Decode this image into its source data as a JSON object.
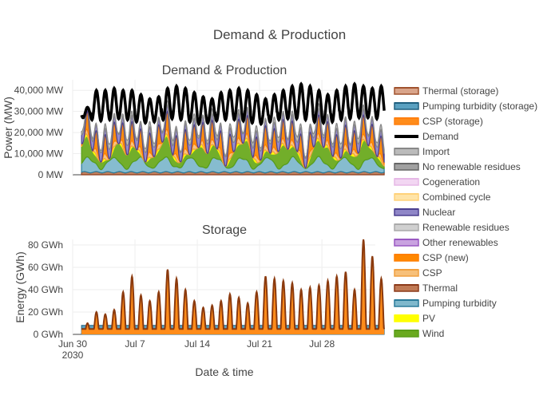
{
  "figure": {
    "title": "Demand & Production",
    "xlabel": "Date & time",
    "x_ticks": [
      {
        "date": "2030-06-30",
        "label": "Jun 30",
        "sublabel": "2030"
      },
      {
        "date": "2030-07-07",
        "label": "Jul 7",
        "sublabel": ""
      },
      {
        "date": "2030-07-14",
        "label": "Jul 14",
        "sublabel": ""
      },
      {
        "date": "2030-07-21",
        "label": "Jul 21",
        "sublabel": ""
      },
      {
        "date": "2030-07-28",
        "label": "Jul 28",
        "sublabel": ""
      }
    ],
    "x_range": [
      "2030-06-30",
      "2030-08-03"
    ]
  },
  "legend": [
    {
      "name": "Thermal (storage)",
      "color": "#a0522d",
      "fill": "#d9a48a"
    },
    {
      "name": "Pumping turbidity (storage)",
      "color": "#1f5f7f",
      "fill": "#5aa0c0"
    },
    {
      "name": "CSP (storage)",
      "color": "#ff7f0e",
      "fill": "#ff8c1a"
    },
    {
      "name": "Demand",
      "color": "#000000",
      "fill": "#000000"
    },
    {
      "name": "Import",
      "color": "#888888",
      "fill": "#bbbbbb"
    },
    {
      "name": "No renewable residues",
      "color": "#666666",
      "fill": "#a0a0a0"
    },
    {
      "name": "Cogeneration",
      "color": "#e6b8e6",
      "fill": "#f2d6f2"
    },
    {
      "name": "Combined cycle",
      "color": "#ffd27a",
      "fill": "#ffe4a8"
    },
    {
      "name": "Nuclear",
      "color": "#4b3f8f",
      "fill": "#8f86c7"
    },
    {
      "name": "Renewable residues",
      "color": "#aaaaaa",
      "fill": "#d0d0d0"
    },
    {
      "name": "Other renewables",
      "color": "#9a59c2",
      "fill": "#c9a3e0"
    },
    {
      "name": "CSP (new)",
      "color": "#ff7f00",
      "fill": "#ff8800"
    },
    {
      "name": "CSP",
      "color": "#f0a040",
      "fill": "#f7c07a"
    },
    {
      "name": "Thermal",
      "color": "#8b3a1a",
      "fill": "#c07a55"
    },
    {
      "name": "Pumping turbidity",
      "color": "#2a7a9a",
      "fill": "#7fb8cc"
    },
    {
      "name": "PV",
      "color": "#ffff00",
      "fill": "#ffff00"
    },
    {
      "name": "Wind",
      "color": "#5a9e1a",
      "fill": "#6aaa1f"
    }
  ],
  "chart_data": [
    {
      "type": "area",
      "title": "Demand & Production",
      "ylabel": "Power (MW)",
      "ylim": [
        0,
        45000
      ],
      "y_ticks": [
        {
          "value": 0,
          "label": "0 MW"
        },
        {
          "value": 10000,
          "label": "10,000 MW"
        },
        {
          "value": 20000,
          "label": "20,000 MW"
        },
        {
          "value": 30000,
          "label": "30,000 MW"
        },
        {
          "value": 40000,
          "label": "40,000 MW"
        }
      ],
      "x_start": "2030-07-01",
      "days": 34,
      "demand_series": {
        "name": "Demand",
        "min_mw": [
          27000,
          26000,
          25500,
          26000,
          26500,
          26000,
          25000,
          24500,
          25000,
          26000,
          26500,
          26000,
          25000,
          24000,
          24500,
          25500,
          26000,
          26000,
          25500,
          24500,
          24000,
          25000,
          26000,
          26500,
          26500,
          26000,
          25000,
          24500,
          25000,
          26000,
          26500,
          27000,
          27000,
          26500
        ],
        "max_mw": [
          32000,
          40000,
          40000,
          41000,
          40000,
          40000,
          38000,
          36000,
          37000,
          41000,
          42000,
          41000,
          39000,
          37000,
          36000,
          39000,
          40000,
          41000,
          40000,
          38000,
          36000,
          38000,
          40000,
          42000,
          43000,
          42000,
          40000,
          38000,
          40000,
          42000,
          43000,
          42000,
          41000,
          42000
        ]
      },
      "note_series": [
        "Wind",
        "Pumping turbidity",
        "Thermal",
        "PV",
        "CSP",
        "CSP (new)",
        "Nuclear",
        "Import"
      ]
    },
    {
      "type": "area",
      "title": "Storage",
      "ylabel": "Energy (GWh)",
      "ylim": [
        0,
        85
      ],
      "y_ticks": [
        {
          "value": 0,
          "label": "0 GWh"
        },
        {
          "value": 20,
          "label": "20 GWh"
        },
        {
          "value": 40,
          "label": "40 GWh"
        },
        {
          "value": 60,
          "label": "60 GWh"
        },
        {
          "value": 80,
          "label": "80 GWh"
        }
      ],
      "x_start": "2030-07-01",
      "days": 34,
      "daily_peak_gwh": [
        10,
        20,
        18,
        22,
        38,
        52,
        35,
        30,
        38,
        58,
        50,
        40,
        30,
        24,
        26,
        30,
        36,
        33,
        28,
        38,
        52,
        50,
        48,
        46,
        40,
        42,
        44,
        48,
        52,
        56,
        40,
        85,
        70,
        50
      ],
      "pumping_base_gwh": 8
    }
  ]
}
